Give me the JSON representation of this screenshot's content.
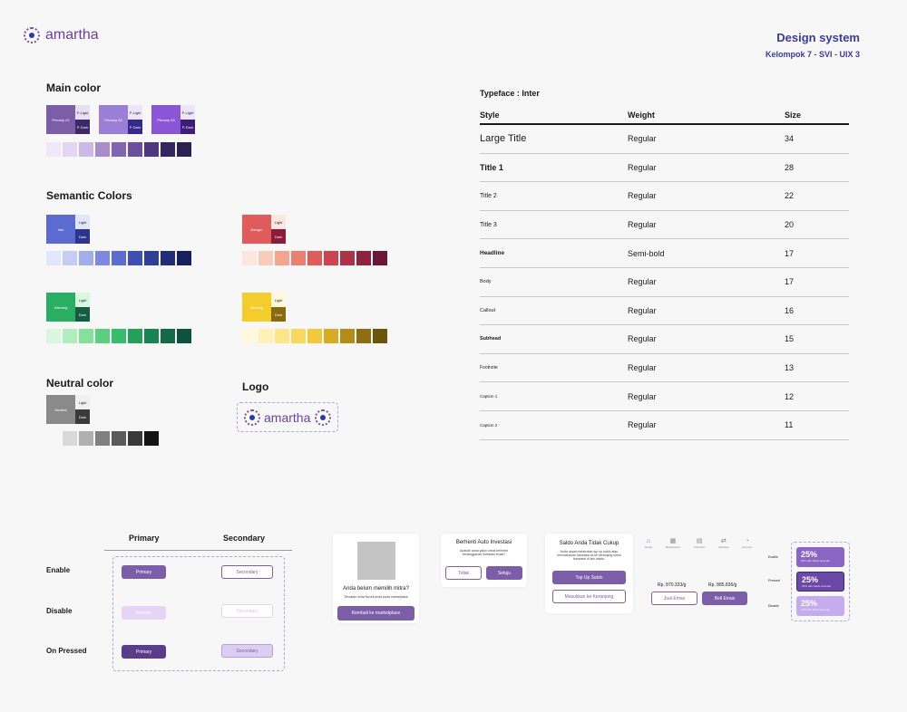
{
  "header": {
    "brand": "amartha",
    "title": "Design system",
    "subtitle": "Kelompok 7 - SVI - UIX 3"
  },
  "main_color": {
    "heading": "Main color",
    "blocks": [
      {
        "main": "Primary 01",
        "light": "P-Light",
        "dark": "P-Dark",
        "main_color": "#7b5ea7",
        "light_color": "#e7e0f2",
        "dark_color": "#3b2a66"
      },
      {
        "main": "Primary 02",
        "light": "P-Light",
        "dark": "P-Dark",
        "main_color": "#9b7fd6",
        "light_color": "#ece6fa",
        "dark_color": "#35298f"
      },
      {
        "main": "Primary 03",
        "light": "P-Light",
        "dark": "P-Dark",
        "main_color": "#8a56d6",
        "light_color": "#efe5fb",
        "dark_color": "#3e1d7a"
      }
    ],
    "swatches": [
      "#eee8f9",
      "#e2d6f3",
      "#cdb8ea",
      "#a98ccc",
      "#8264b2",
      "#6b4f9e",
      "#4d3880",
      "#332761",
      "#2b2152"
    ]
  },
  "semantic": {
    "heading": "Semantic Colors",
    "groups": [
      {
        "main": "Info",
        "light": "Light",
        "dark": "Dark",
        "main_color": "#5c6bd0",
        "light_color": "#e2e6fb",
        "dark_color": "#2c3391",
        "swatches": [
          "#e2e6fb",
          "#c6cdf4",
          "#a4adec",
          "#7e88de",
          "#5c6bd0",
          "#3f4fb5",
          "#303d99",
          "#232c7a",
          "#171f5e"
        ]
      },
      {
        "main": "Danger",
        "light": "Light",
        "dark": "Dark",
        "main_color": "#e05b5b",
        "light_color": "#fde6df",
        "dark_color": "#8a1c3a",
        "swatches": [
          "#fde6df",
          "#f9cbbd",
          "#f2a692",
          "#e98172",
          "#e05b5b",
          "#cc4451",
          "#ad3247",
          "#8e2240",
          "#6f1535"
        ]
      },
      {
        "main": "Warning",
        "light": "Light",
        "dark": "Dark",
        "main_color": "#2aae63",
        "light_color": "#d9f6df",
        "dark_color": "#145c43",
        "swatches": [
          "#d9f6df",
          "#b0edbe",
          "#85e09b",
          "#5ccf7f",
          "#37bb6c",
          "#24a05c",
          "#198452",
          "#126a48",
          "#0d523c"
        ]
      },
      {
        "main": "Warning",
        "light": "Light",
        "dark": "Dark",
        "main_color": "#f5cc2e",
        "light_color": "#fff8d9",
        "dark_color": "#8a6a10",
        "swatches": [
          "#fff8d9",
          "#fff0b3",
          "#fde68a",
          "#f9d860",
          "#f2c93a",
          "#d7ab22",
          "#b38b18",
          "#8f6e12",
          "#6d540d"
        ]
      }
    ]
  },
  "neutral": {
    "heading": "Neutral color",
    "main": "Neutral",
    "light": "Light",
    "dark": "Dark",
    "main_color": "#8a8a8a",
    "light_color": "#f0f0f0",
    "dark_color": "#3a3a3a",
    "swatches": [
      "#d9d9d9",
      "#b0b0b0",
      "#808080",
      "#5a5a5a",
      "#3a3a3a",
      "#141414"
    ]
  },
  "logo": {
    "heading": "Logo",
    "text": "amartha"
  },
  "typeface": {
    "label": "Typeface : Inter",
    "headers": [
      "Style",
      "Weight",
      "Size"
    ],
    "rows": [
      {
        "style": "Large Title",
        "weight": "Regular",
        "size": "34"
      },
      {
        "style": "Title 1",
        "weight": "Regular",
        "size": "28"
      },
      {
        "style": "Title 2",
        "weight": "Regular",
        "size": "22"
      },
      {
        "style": "Title 3",
        "weight": "Regular",
        "size": "20"
      },
      {
        "style": "Headline",
        "weight": "Semi-bold",
        "size": "17"
      },
      {
        "style": "Body",
        "weight": "Regular",
        "size": "17"
      },
      {
        "style": "Callout",
        "weight": "Regular",
        "size": "16"
      },
      {
        "style": "Subhead",
        "weight": "Regular",
        "size": "15"
      },
      {
        "style": "Footnote",
        "weight": "Regular",
        "size": "13"
      },
      {
        "style": "Caption 1",
        "weight": "Regular",
        "size": "12"
      },
      {
        "style": "Caption 2",
        "weight": "Regular",
        "size": "11"
      }
    ]
  },
  "buttons": {
    "col_primary": "Primary",
    "col_secondary": "Secondary",
    "states": [
      "Enable",
      "Disable",
      "On Pressed"
    ],
    "primary_label": "Primary",
    "secondary_label": "Secondary"
  },
  "card_mitra": {
    "title": "Anda belum memilih mitra?",
    "desc": "Temukan mitra favorit anda pada marketplace",
    "button": "Kembali ke marketplace"
  },
  "card_auto": {
    "title": "Berhenti Auto Investasi",
    "desc": "Apakah anda yakin untuk berhenti berlangganan investasi emas?",
    "btn_no": "Tidak",
    "btn_yes": "Setuju"
  },
  "card_saldo": {
    "title": "Saldo Anda Tidak Cukup",
    "desc": "Anda dapat melakukan top up saldo atau memasukkan transaksi ini ke keranjang untuk transaksi di lain waktu.",
    "btn_topup": "Top Up Saldo",
    "btn_cart": "Masukkan ke Keranjang"
  },
  "nav_card": {
    "tabs": [
      "Home",
      "Marketplace",
      "Portofolio",
      "Aktivitas",
      "Account"
    ],
    "sell_price": "Rp. 870.333/g",
    "buy_price": "Rp. 885.836/g",
    "sell_button": "Jual Emas",
    "buy_button": "Beli Emas"
  },
  "percent_cards": {
    "states": [
      "Enable",
      "Pressed",
      "Disable"
    ],
    "value": "25%",
    "caption": "25% dari Saldo tersedia"
  }
}
